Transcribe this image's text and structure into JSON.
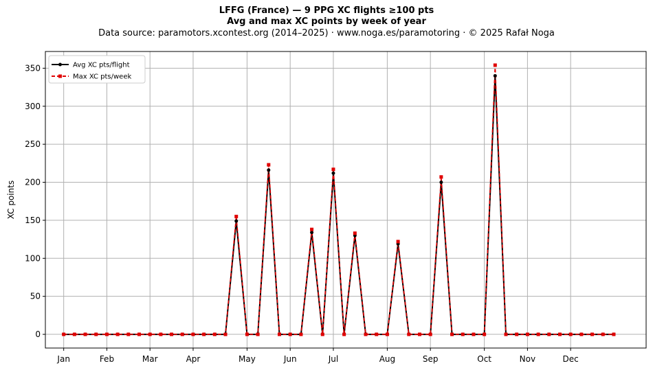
{
  "title_line1": "LFFG (France)  —  9 PPG XC flights ≥100 pts",
  "title_line2": "Avg and max XC points by week of year",
  "subtitle": "Data source: paramotors.xcontest.org (2014–2025)  ·  www.noga.es/paramotoring  ·  © 2025 Rafał Noga",
  "chart_data": {
    "type": "line",
    "xlabel": "",
    "ylabel": "XC points",
    "xlim": [
      -1.7,
      54
    ],
    "ylim": [
      -18,
      372
    ],
    "grid": true,
    "legend_position": "top-left",
    "month_ticks": [
      {
        "label": "Jan",
        "week": 0
      },
      {
        "label": "Feb",
        "week": 4
      },
      {
        "label": "Mar",
        "week": 8
      },
      {
        "label": "Apr",
        "week": 12
      },
      {
        "label": "May",
        "week": 17
      },
      {
        "label": "Jun",
        "week": 21
      },
      {
        "label": "Jul",
        "week": 25
      },
      {
        "label": "Aug",
        "week": 30
      },
      {
        "label": "Sep",
        "week": 34
      },
      {
        "label": "Oct",
        "week": 39
      },
      {
        "label": "Nov",
        "week": 43
      },
      {
        "label": "Dec",
        "week": 47
      }
    ],
    "y_ticks": [
      0,
      50,
      100,
      150,
      200,
      250,
      300,
      350
    ],
    "x": [
      0,
      1,
      2,
      3,
      4,
      5,
      6,
      7,
      8,
      9,
      10,
      11,
      12,
      13,
      14,
      15,
      16,
      17,
      18,
      19,
      20,
      21,
      22,
      23,
      24,
      25,
      26,
      27,
      28,
      29,
      30,
      31,
      32,
      33,
      34,
      35,
      36,
      37,
      38,
      39,
      40,
      41,
      42,
      43,
      44,
      45,
      46,
      47,
      48,
      49,
      50,
      51
    ],
    "series": [
      {
        "name": "Avg XC pts/flight",
        "color": "#000000",
        "style": "solid",
        "marker": "circle",
        "values": [
          0,
          0,
          0,
          0,
          0,
          0,
          0,
          0,
          0,
          0,
          0,
          0,
          0,
          0,
          0,
          0,
          149,
          0,
          0,
          216,
          0,
          0,
          0,
          134,
          0,
          212,
          0,
          130,
          0,
          0,
          0,
          119,
          0,
          0,
          0,
          200,
          0,
          0,
          0,
          0,
          340,
          0,
          0,
          0,
          0,
          0,
          0,
          0,
          0,
          0,
          0,
          0
        ]
      },
      {
        "name": "Max XC pts/week",
        "color": "#e00000",
        "style": "dashed",
        "marker": "square",
        "values": [
          0,
          0,
          0,
          0,
          0,
          0,
          0,
          0,
          0,
          0,
          0,
          0,
          0,
          0,
          0,
          0,
          155,
          0,
          0,
          223,
          0,
          0,
          0,
          138,
          0,
          217,
          0,
          133,
          0,
          0,
          0,
          122,
          0,
          0,
          0,
          207,
          0,
          0,
          0,
          0,
          354,
          0,
          0,
          0,
          0,
          0,
          0,
          0,
          0,
          0,
          0,
          0
        ]
      }
    ]
  }
}
